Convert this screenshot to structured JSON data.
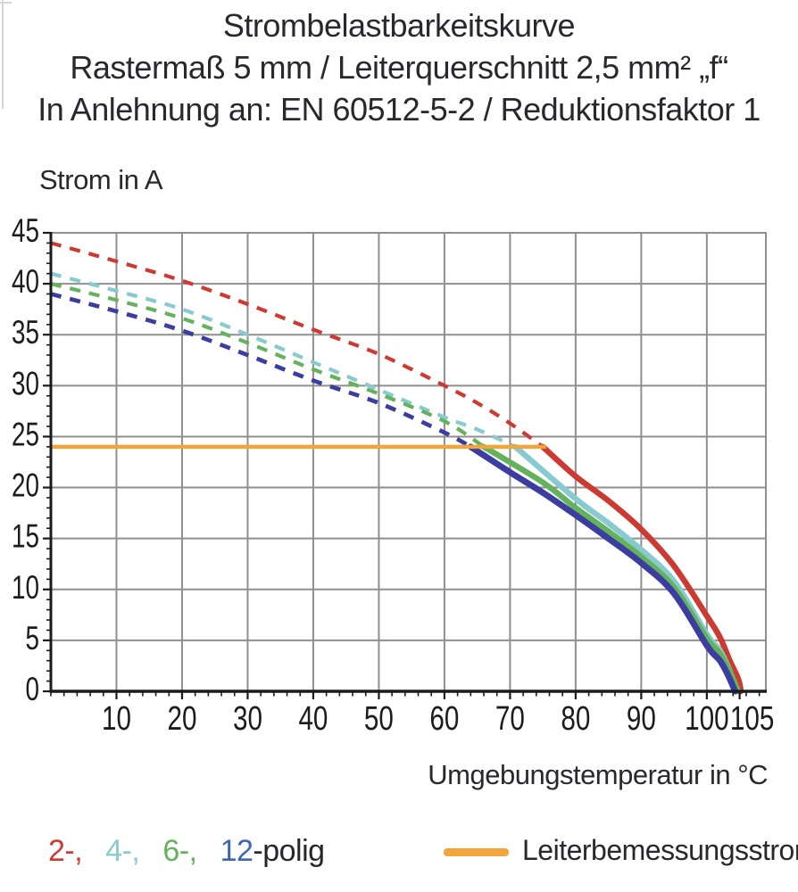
{
  "title": {
    "line1": "Strombelastbarkeitskurve",
    "line2": "Rastermaß 5 mm / Leiterquerschnitt 2,5 mm² „f“",
    "line3": "In Anlehnung an: EN 60512-5-2 / Reduktionsfaktor 1"
  },
  "chart_data": {
    "type": "line",
    "title": "Strombelastbarkeitskurve",
    "xlabel": "Umgebungstemperatur in °C",
    "ylabel": "Strom in A",
    "grid": true,
    "grid_color": "#8f8f8f",
    "axis_color": "#1b1b20",
    "legend_position": "bottom",
    "x_axis": {
      "label": "Umgebungstemperatur in °C",
      "range": [
        0,
        109
      ],
      "major_ticks": [
        10,
        20,
        30,
        40,
        50,
        60,
        70,
        80,
        90,
        100,
        105
      ],
      "gridlines": [
        10,
        20,
        30,
        40,
        50,
        60,
        70,
        80,
        90,
        100
      ],
      "minor_tick_step": 2
    },
    "y_axis": {
      "label": "Strom in A",
      "range": [
        0,
        45
      ],
      "major_ticks": [
        0,
        5,
        10,
        15,
        20,
        25,
        30,
        35,
        40,
        45
      ],
      "gridlines": [
        5,
        10,
        15,
        20,
        25,
        30,
        35,
        40
      ],
      "minor_tick_step": 1
    },
    "reference_line": {
      "name": "Leiterbemessungsstrom",
      "color": "#f2a53c",
      "value": 24,
      "x_start": 0,
      "x_end": 75.5,
      "stroke_width": 4.5
    },
    "series": [
      {
        "name": "2-polig",
        "color": "#cd3a31",
        "stroke_width": 6.5,
        "dash": [
          12,
          10
        ],
        "dashed_points": [
          [
            0,
            44
          ],
          [
            10,
            42.2
          ],
          [
            20,
            40.3
          ],
          [
            30,
            38
          ],
          [
            40,
            35.5
          ],
          [
            50,
            33.1
          ],
          [
            60,
            30
          ],
          [
            65,
            28.3
          ],
          [
            70,
            26.3
          ],
          [
            75,
            24
          ]
        ],
        "solid_points": [
          [
            75,
            24
          ],
          [
            80,
            21.1
          ],
          [
            85,
            18.7
          ],
          [
            90,
            15.9
          ],
          [
            95,
            12.3
          ],
          [
            100,
            7.4
          ],
          [
            102,
            5.3
          ],
          [
            103.5,
            3
          ],
          [
            104.8,
            1.2
          ],
          [
            105.2,
            0
          ]
        ]
      },
      {
        "name": "4-polig",
        "color": "#87cbd1",
        "stroke_width": 6.5,
        "dash": [
          12,
          10
        ],
        "dashed_points": [
          [
            0,
            41
          ],
          [
            10,
            39.3
          ],
          [
            20,
            37.5
          ],
          [
            30,
            35
          ],
          [
            40,
            32.3
          ],
          [
            50,
            29.6
          ],
          [
            60,
            26.9
          ],
          [
            65,
            25.7
          ],
          [
            70.8,
            24
          ]
        ],
        "solid_points": [
          [
            70.8,
            24
          ],
          [
            80,
            18.9
          ],
          [
            85,
            16.5
          ],
          [
            90,
            13.9
          ],
          [
            95,
            10.8
          ],
          [
            100,
            5.6
          ],
          [
            102,
            4
          ],
          [
            103.5,
            2
          ],
          [
            104.6,
            0
          ]
        ]
      },
      {
        "name": "6-polig",
        "color": "#64b35c",
        "stroke_width": 6.5,
        "dash": [
          12,
          10
        ],
        "dashed_points": [
          [
            0,
            40
          ],
          [
            10,
            38.4
          ],
          [
            20,
            36.6
          ],
          [
            30,
            34.2
          ],
          [
            40,
            31.6
          ],
          [
            50,
            29.2
          ],
          [
            60,
            26.5
          ],
          [
            66,
            24
          ]
        ],
        "solid_points": [
          [
            66,
            24
          ],
          [
            75,
            20.5
          ],
          [
            80,
            18
          ],
          [
            85,
            15.7
          ],
          [
            90,
            13.2
          ],
          [
            95,
            10.2
          ],
          [
            100,
            5.2
          ],
          [
            102,
            3.7
          ],
          [
            103.6,
            1.8
          ],
          [
            104.8,
            0
          ]
        ]
      },
      {
        "name": "12-polig",
        "color": "#3b3da0",
        "stroke_width": 7,
        "dash": [
          12,
          10
        ],
        "dashed_points": [
          [
            0,
            39
          ],
          [
            10,
            37.3
          ],
          [
            20,
            35.4
          ],
          [
            30,
            33
          ],
          [
            40,
            30.5
          ],
          [
            50,
            28.3
          ],
          [
            60,
            25.4
          ],
          [
            64,
            24
          ]
        ],
        "solid_points": [
          [
            64,
            24
          ],
          [
            70,
            21.5
          ],
          [
            75,
            19.5
          ],
          [
            80,
            17.3
          ],
          [
            85,
            15
          ],
          [
            90,
            12.6
          ],
          [
            95,
            9.6
          ],
          [
            100,
            4.5
          ],
          [
            102,
            3
          ],
          [
            103.3,
            1.5
          ],
          [
            104.3,
            0
          ]
        ]
      }
    ]
  },
  "legend": {
    "poles": {
      "items": [
        {
          "label": "2-,",
          "color": "#cd3a31"
        },
        {
          "label": "4-,",
          "color": "#87cbd1"
        },
        {
          "label": "6-,",
          "color": "#64b35c"
        },
        {
          "label": "12",
          "color": "#3d68b0"
        }
      ],
      "suffix": "-polig",
      "suffix_color": "#27262c"
    },
    "reference": {
      "label": "Leiterbemessungsstrom",
      "swatch_color": "#f2a53c"
    }
  }
}
